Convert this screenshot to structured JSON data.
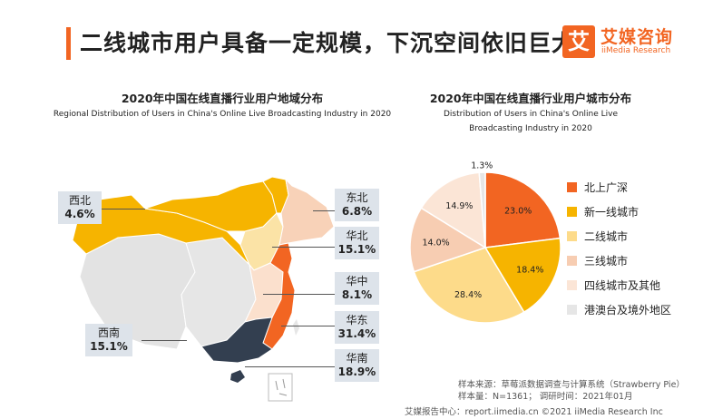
{
  "header": {
    "title": "二线城市用户具备一定规模，下沉空间依旧巨大",
    "logo_glyph": "艾",
    "logo_cn": "艾媒咨询",
    "logo_en": "iiMedia Research"
  },
  "colors": {
    "accent": "#f26522",
    "map_yellow": "#f6b400",
    "map_gray": "#e3e3e3",
    "map_lightpeach": "#f8dcc8",
    "map_orange": "#f26522",
    "map_dark": "#333f50",
    "label_box": "#dde3ea"
  },
  "chart_data": [
    {
      "type": "map",
      "title": "2020年中国在线直播行业用户地域分布",
      "subtitle": "Regional Distribution of Users in China's Online Live Broadcasting Industry in 2020",
      "regions": [
        {
          "name": "西北",
          "value": 4.6,
          "label": "4.6%"
        },
        {
          "name": "东北",
          "value": 6.8,
          "label": "6.8%"
        },
        {
          "name": "华北",
          "value": 15.1,
          "label": "15.1%"
        },
        {
          "name": "华中",
          "value": 8.1,
          "label": "8.1%"
        },
        {
          "name": "华东",
          "value": 31.4,
          "label": "31.4%"
        },
        {
          "name": "西南",
          "value": 15.1,
          "label": "15.1%"
        },
        {
          "name": "华南",
          "value": 18.9,
          "label": "18.9%"
        }
      ]
    },
    {
      "type": "pie",
      "title": "2020年中国在线直播行业用户城市分布",
      "subtitle": "Distribution of Users in China's Online Live Broadcasting Industry in 2020",
      "legend_position": "right",
      "slices": [
        {
          "name": "北上广深",
          "value": 23.0,
          "label": "23.0%",
          "color": "#f26522"
        },
        {
          "name": "新一线城市",
          "value": 18.4,
          "label": "18.4%",
          "color": "#f6b400"
        },
        {
          "name": "二线城市",
          "value": 28.4,
          "label": "28.4%",
          "color": "#fddb8a"
        },
        {
          "name": "三线城市",
          "value": 14.0,
          "label": "14.0%",
          "color": "#f7cdb2"
        },
        {
          "name": "四线城市及其他",
          "value": 14.9,
          "label": "14.9%",
          "color": "#fbe5d6"
        },
        {
          "name": "港澳台及境外地区",
          "value": 1.3,
          "label": "1.3%",
          "color": "#e6e6e6"
        }
      ]
    }
  ],
  "source": {
    "line1": "样本来源：草莓派数据调查与计算系统（Strawberry Pie）",
    "line2": "样本量：N=1361；  调研时间：2021年01月"
  },
  "footer": {
    "text": "艾媒报告中心：report.iimedia.cn  ©2021  iiMedia Research  Inc"
  }
}
